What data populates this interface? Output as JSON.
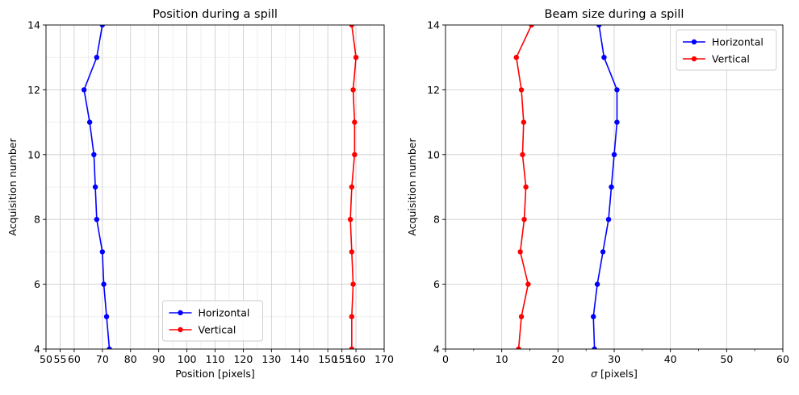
{
  "chart_data": [
    {
      "type": "line",
      "title": "Position during a spill",
      "xlabel": "Position [pixels]",
      "ylabel": "Acquisition number",
      "xlim": [
        50,
        170
      ],
      "ylim": [
        4,
        14
      ],
      "x_ticks": [
        50,
        55,
        60,
        70,
        80,
        90,
        100,
        110,
        120,
        130,
        140,
        150,
        155,
        160,
        170
      ],
      "y_ticks": [
        4,
        6,
        8,
        10,
        12,
        14
      ],
      "grid": "major and minor",
      "legend_position": "lower center",
      "series": [
        {
          "name": "Horizontal",
          "color": "#0000ff",
          "points": [
            [
              72.5,
              4
            ],
            [
              71.5,
              5
            ],
            [
              70.5,
              6
            ],
            [
              70,
              7
            ],
            [
              68,
              8
            ],
            [
              67.5,
              9
            ],
            [
              67,
              10
            ],
            [
              65.5,
              11
            ],
            [
              63.5,
              12
            ],
            [
              68,
              13
            ],
            [
              70,
              14
            ]
          ]
        },
        {
          "name": "Vertical",
          "color": "#ff0000",
          "points": [
            [
              158.5,
              4
            ],
            [
              158.5,
              5
            ],
            [
              159,
              6
            ],
            [
              158.5,
              7
            ],
            [
              158,
              8
            ],
            [
              158.5,
              9
            ],
            [
              159.5,
              10
            ],
            [
              159.5,
              11
            ],
            [
              159,
              12
            ],
            [
              160,
              13
            ],
            [
              158.5,
              14
            ]
          ]
        }
      ]
    },
    {
      "type": "line",
      "title": "Beam size during a spill",
      "xlabel": "σ [pixels]",
      "ylabel": "Acquisition number",
      "xlim": [
        0,
        60
      ],
      "ylim": [
        4,
        14
      ],
      "x_ticks": [
        0,
        10,
        20,
        30,
        40,
        50,
        60
      ],
      "y_ticks": [
        4,
        6,
        8,
        10,
        12,
        14
      ],
      "grid": "major",
      "legend_position": "upper right",
      "series": [
        {
          "name": "Horizontal",
          "color": "#0000ff",
          "points": [
            [
              26.5,
              4
            ],
            [
              26.3,
              5
            ],
            [
              27,
              6
            ],
            [
              28,
              7
            ],
            [
              29,
              8
            ],
            [
              29.5,
              9
            ],
            [
              30,
              10
            ],
            [
              30.5,
              11
            ],
            [
              30.5,
              12
            ],
            [
              28.2,
              13
            ],
            [
              27.3,
              14
            ]
          ]
        },
        {
          "name": "Vertical",
          "color": "#ff0000",
          "points": [
            [
              13,
              4
            ],
            [
              13.5,
              5
            ],
            [
              14.7,
              6
            ],
            [
              13.3,
              7
            ],
            [
              14,
              8
            ],
            [
              14.3,
              9
            ],
            [
              13.7,
              10
            ],
            [
              13.9,
              11
            ],
            [
              13.5,
              12
            ],
            [
              12.6,
              13
            ],
            [
              15.3,
              14
            ]
          ]
        }
      ]
    }
  ]
}
